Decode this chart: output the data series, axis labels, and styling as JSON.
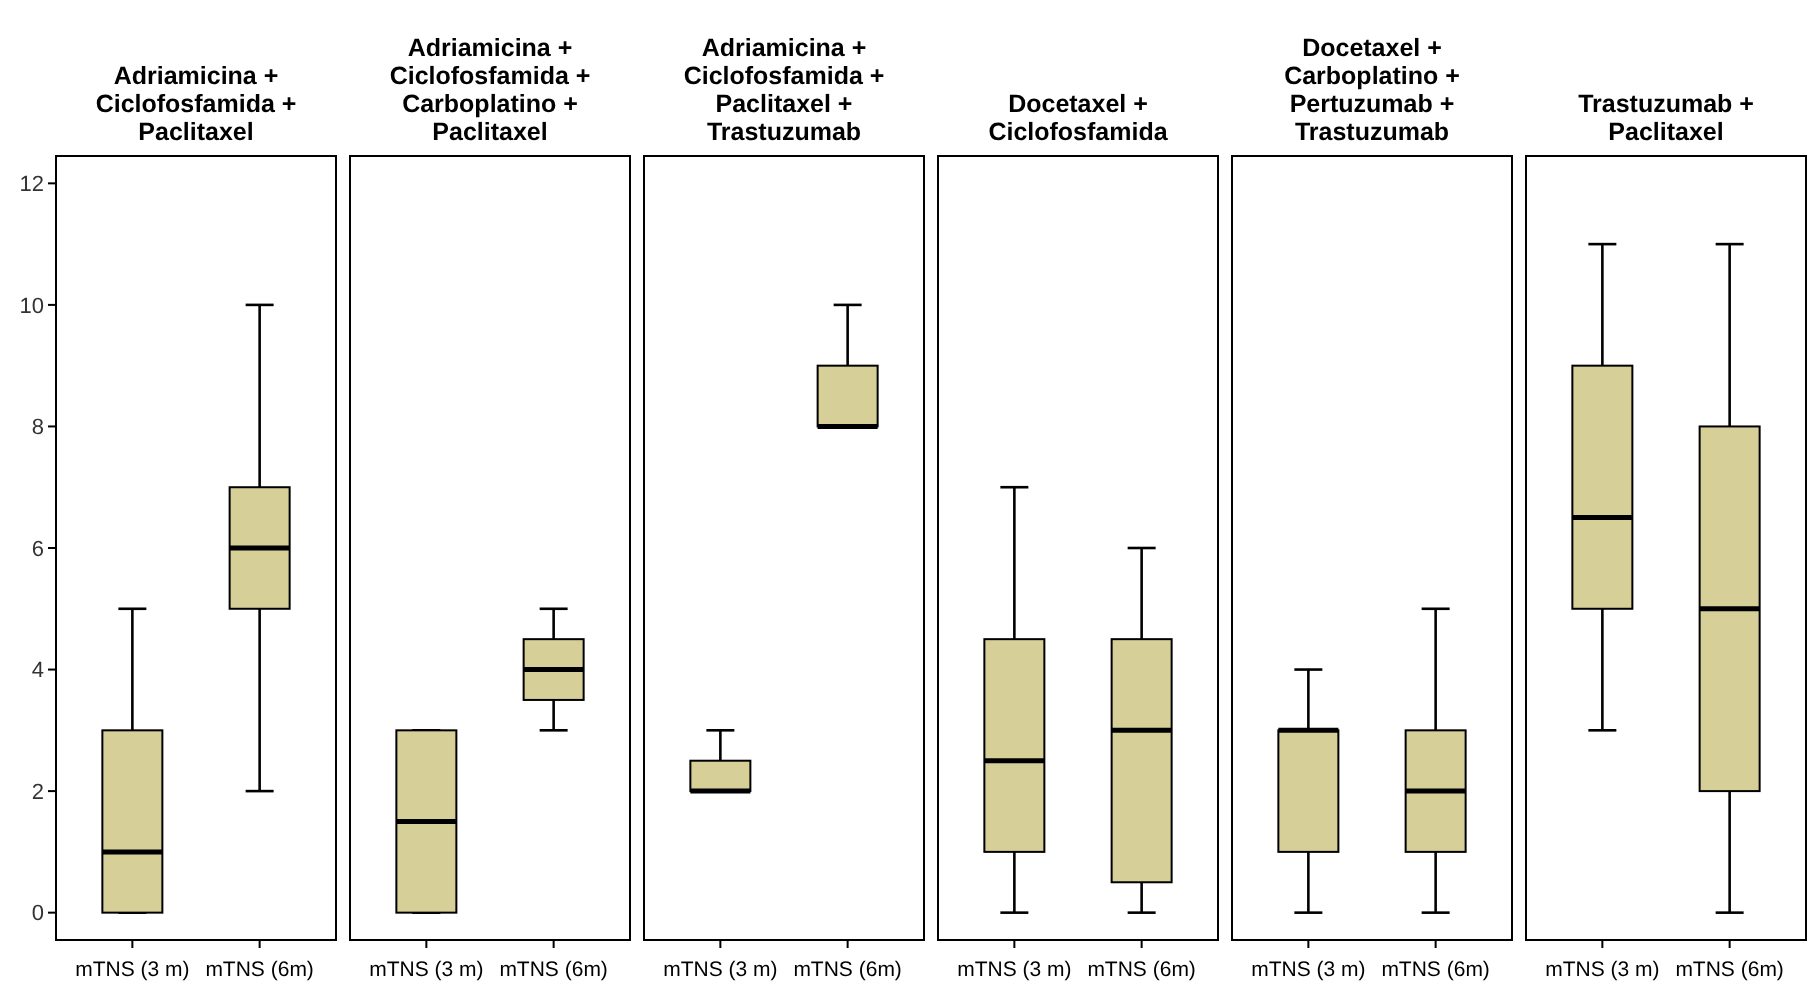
{
  "chart_data": [
    {
      "type": "box",
      "title": "Adriamicina + Ciclofosfamida + Paclitaxel",
      "categories": [
        "mTNS (3 m)",
        "mTNS (6m)"
      ],
      "color": "#d7cf98",
      "ylim": [
        -0.45,
        12.45
      ],
      "yticks": [
        0,
        2,
        4,
        6,
        8,
        10,
        12
      ],
      "boxes": [
        {
          "low": 0,
          "q1": 0,
          "median": 1,
          "q3": 3,
          "high": 5
        },
        {
          "low": 2,
          "q1": 5,
          "median": 6,
          "q3": 7,
          "high": 10
        }
      ]
    },
    {
      "type": "box",
      "title": "Adriamicina + Ciclofosfamida + Carboplatino + Paclitaxel",
      "categories": [
        "mTNS (3 m)",
        "mTNS (6m)"
      ],
      "color": "#d7cf98",
      "ylim": [
        -0.45,
        12.45
      ],
      "yticks": [
        0,
        2,
        4,
        6,
        8,
        10,
        12
      ],
      "tick_labels": "x",
      "boxes": [
        {
          "low": 0,
          "q1": 0,
          "median": 1.5,
          "q3": 3,
          "high": 3
        },
        {
          "low": 3,
          "q1": 3.5,
          "median": 4,
          "q3": 4.5,
          "high": 5
        }
      ]
    },
    {
      "type": "box",
      "title": "Adriamicina + Ciclofosfamida + Paclitaxel + Trastuzumab",
      "categories": [
        "mTNS (3 m)",
        "mTNS (6m)"
      ],
      "color": "#d7cf98",
      "ylim": [
        -0.45,
        12.45
      ],
      "yticks": [
        0,
        2,
        4,
        6,
        8,
        10,
        12
      ],
      "tick_labels": "x",
      "boxes": [
        {
          "low": 2,
          "q1": 2,
          "median": 2,
          "q3": 2.5,
          "high": 3
        },
        {
          "low": 8,
          "q1": 8,
          "median": 8,
          "q3": 9,
          "high": 10
        }
      ]
    },
    {
      "type": "box",
      "title": "Docetaxel + Ciclofosfamida",
      "categories": [
        "mTNS (3 m)",
        "mTNS (6m)"
      ],
      "color": "#d7cf98",
      "ylim": [
        -0.45,
        12.45
      ],
      "yticks": [
        0,
        2,
        4,
        6,
        8,
        10,
        12
      ],
      "tick_labels": "x",
      "boxes": [
        {
          "low": 0,
          "q1": 1,
          "median": 2.5,
          "q3": 4.5,
          "high": 7
        },
        {
          "low": 0,
          "q1": 0.5,
          "median": 3,
          "q3": 4.5,
          "high": 6
        }
      ]
    },
    {
      "type": "box",
      "title": "Docetaxel + Carboplatino + Pertuzumab + Trastuzumab",
      "categories": [
        "mTNS (3 m)",
        "mTNS (6m)"
      ],
      "color": "#d7cf98",
      "ylim": [
        -0.45,
        12.45
      ],
      "yticks": [
        0,
        2,
        4,
        6,
        8,
        10,
        12
      ],
      "tick_labels": "x",
      "boxes": [
        {
          "low": 0,
          "q1": 1,
          "median": 3,
          "q3": 3,
          "high": 4
        },
        {
          "low": 0,
          "q1": 1,
          "median": 2,
          "q3": 3,
          "high": 5
        }
      ]
    },
    {
      "type": "box",
      "title": "Trastuzumab + Paclitaxel",
      "categories": [
        "mTNS (3 m)",
        "mTNS (6m)"
      ],
      "color": "#d7cf98",
      "ylim": [
        -0.45,
        12.45
      ],
      "yticks": [
        0,
        2,
        4,
        6,
        8,
        10,
        12
      ],
      "tick_labels": "x",
      "boxes": [
        {
          "low": 3,
          "q1": 5,
          "median": 6.5,
          "q3": 9,
          "high": 11
        },
        {
          "low": 0,
          "q1": 2,
          "median": 5,
          "q3": 8,
          "high": 11
        }
      ]
    }
  ]
}
